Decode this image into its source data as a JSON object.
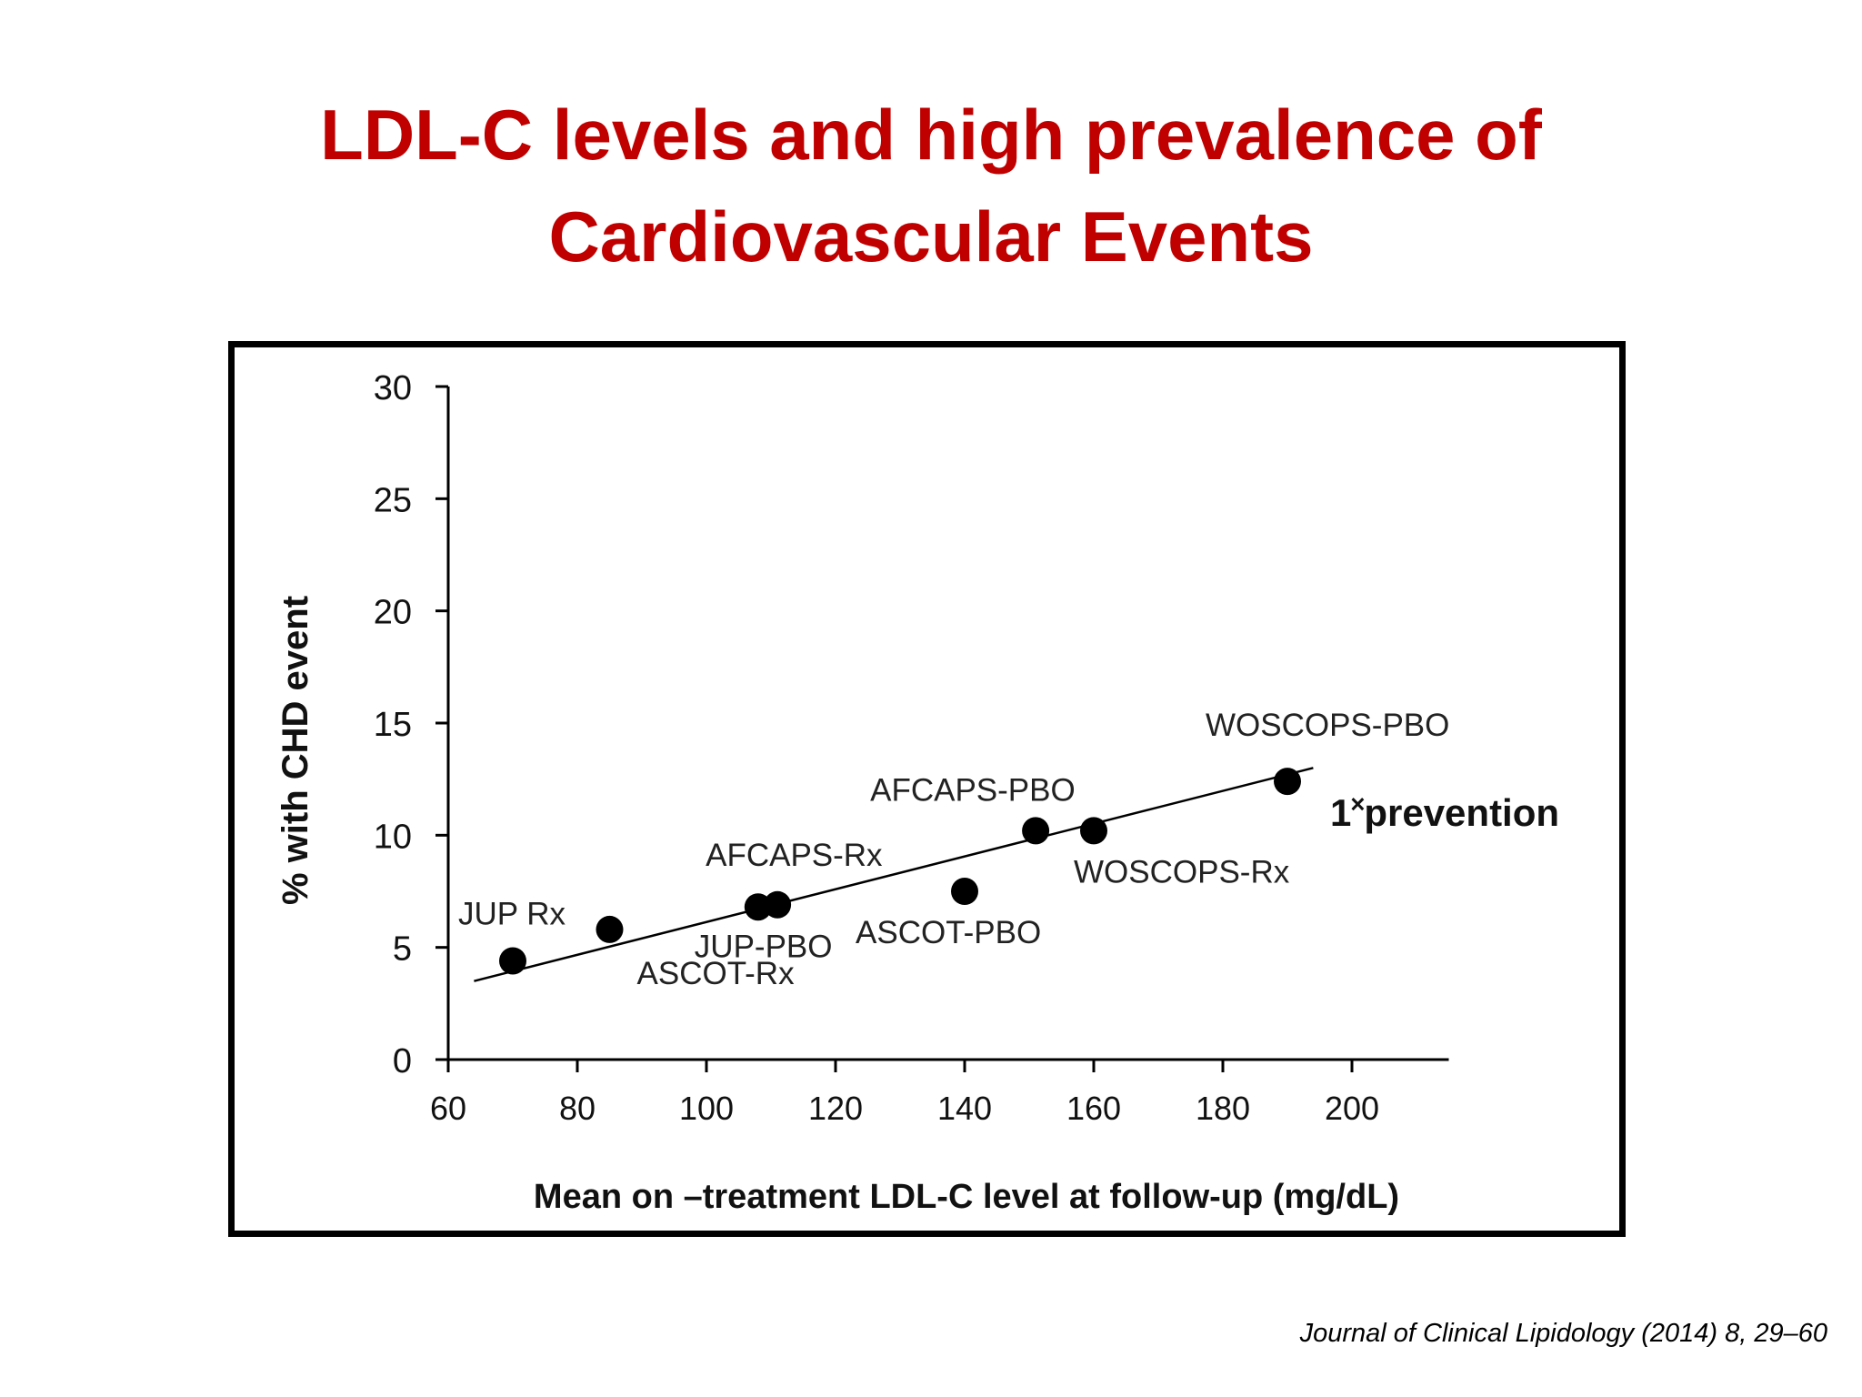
{
  "slide": {
    "title_line1": "LDL-C levels and high prevalence of",
    "title_line2": "Cardiovascular Events",
    "citation": "Journal of Clinical Lipidology (2014) 8, 29–60",
    "title_color": "#c00000"
  },
  "chart_data": {
    "type": "scatter",
    "title": "",
    "xlabel": "Mean on –treatment LDL-C level at follow-up (mg/dL)",
    "ylabel": "% with CHD event",
    "xlim": [
      60,
      215
    ],
    "ylim": [
      0,
      30
    ],
    "x_ticks": [
      60,
      80,
      100,
      120,
      140,
      160,
      180,
      200
    ],
    "y_ticks": [
      0,
      5,
      10,
      15,
      20,
      25,
      30
    ],
    "grid": false,
    "series": [
      {
        "points": [
          {
            "label": "JUP Rx",
            "x": 70,
            "y": 4.4
          },
          {
            "label": "ASCOT-Rx",
            "x": 85,
            "y": 5.8
          },
          {
            "label": "JUP-PBO",
            "x": 108,
            "y": 6.8
          },
          {
            "label": "AFCAPS-Rx",
            "x": 111,
            "y": 6.9
          },
          {
            "label": "ASCOT-PBO",
            "x": 140,
            "y": 7.5
          },
          {
            "label": "AFCAPS-PBO",
            "x": 151,
            "y": 10.2
          },
          {
            "label": "WOSCOPS-Rx",
            "x": 160,
            "y": 10.2
          },
          {
            "label": "WOSCOPS-PBO",
            "x": 190,
            "y": 12.4
          }
        ]
      }
    ],
    "trendline": {
      "x": [
        64,
        194
      ],
      "y": [
        3.5,
        13.0
      ]
    },
    "annotations": [
      {
        "text": "1˟prevention"
      }
    ]
  }
}
